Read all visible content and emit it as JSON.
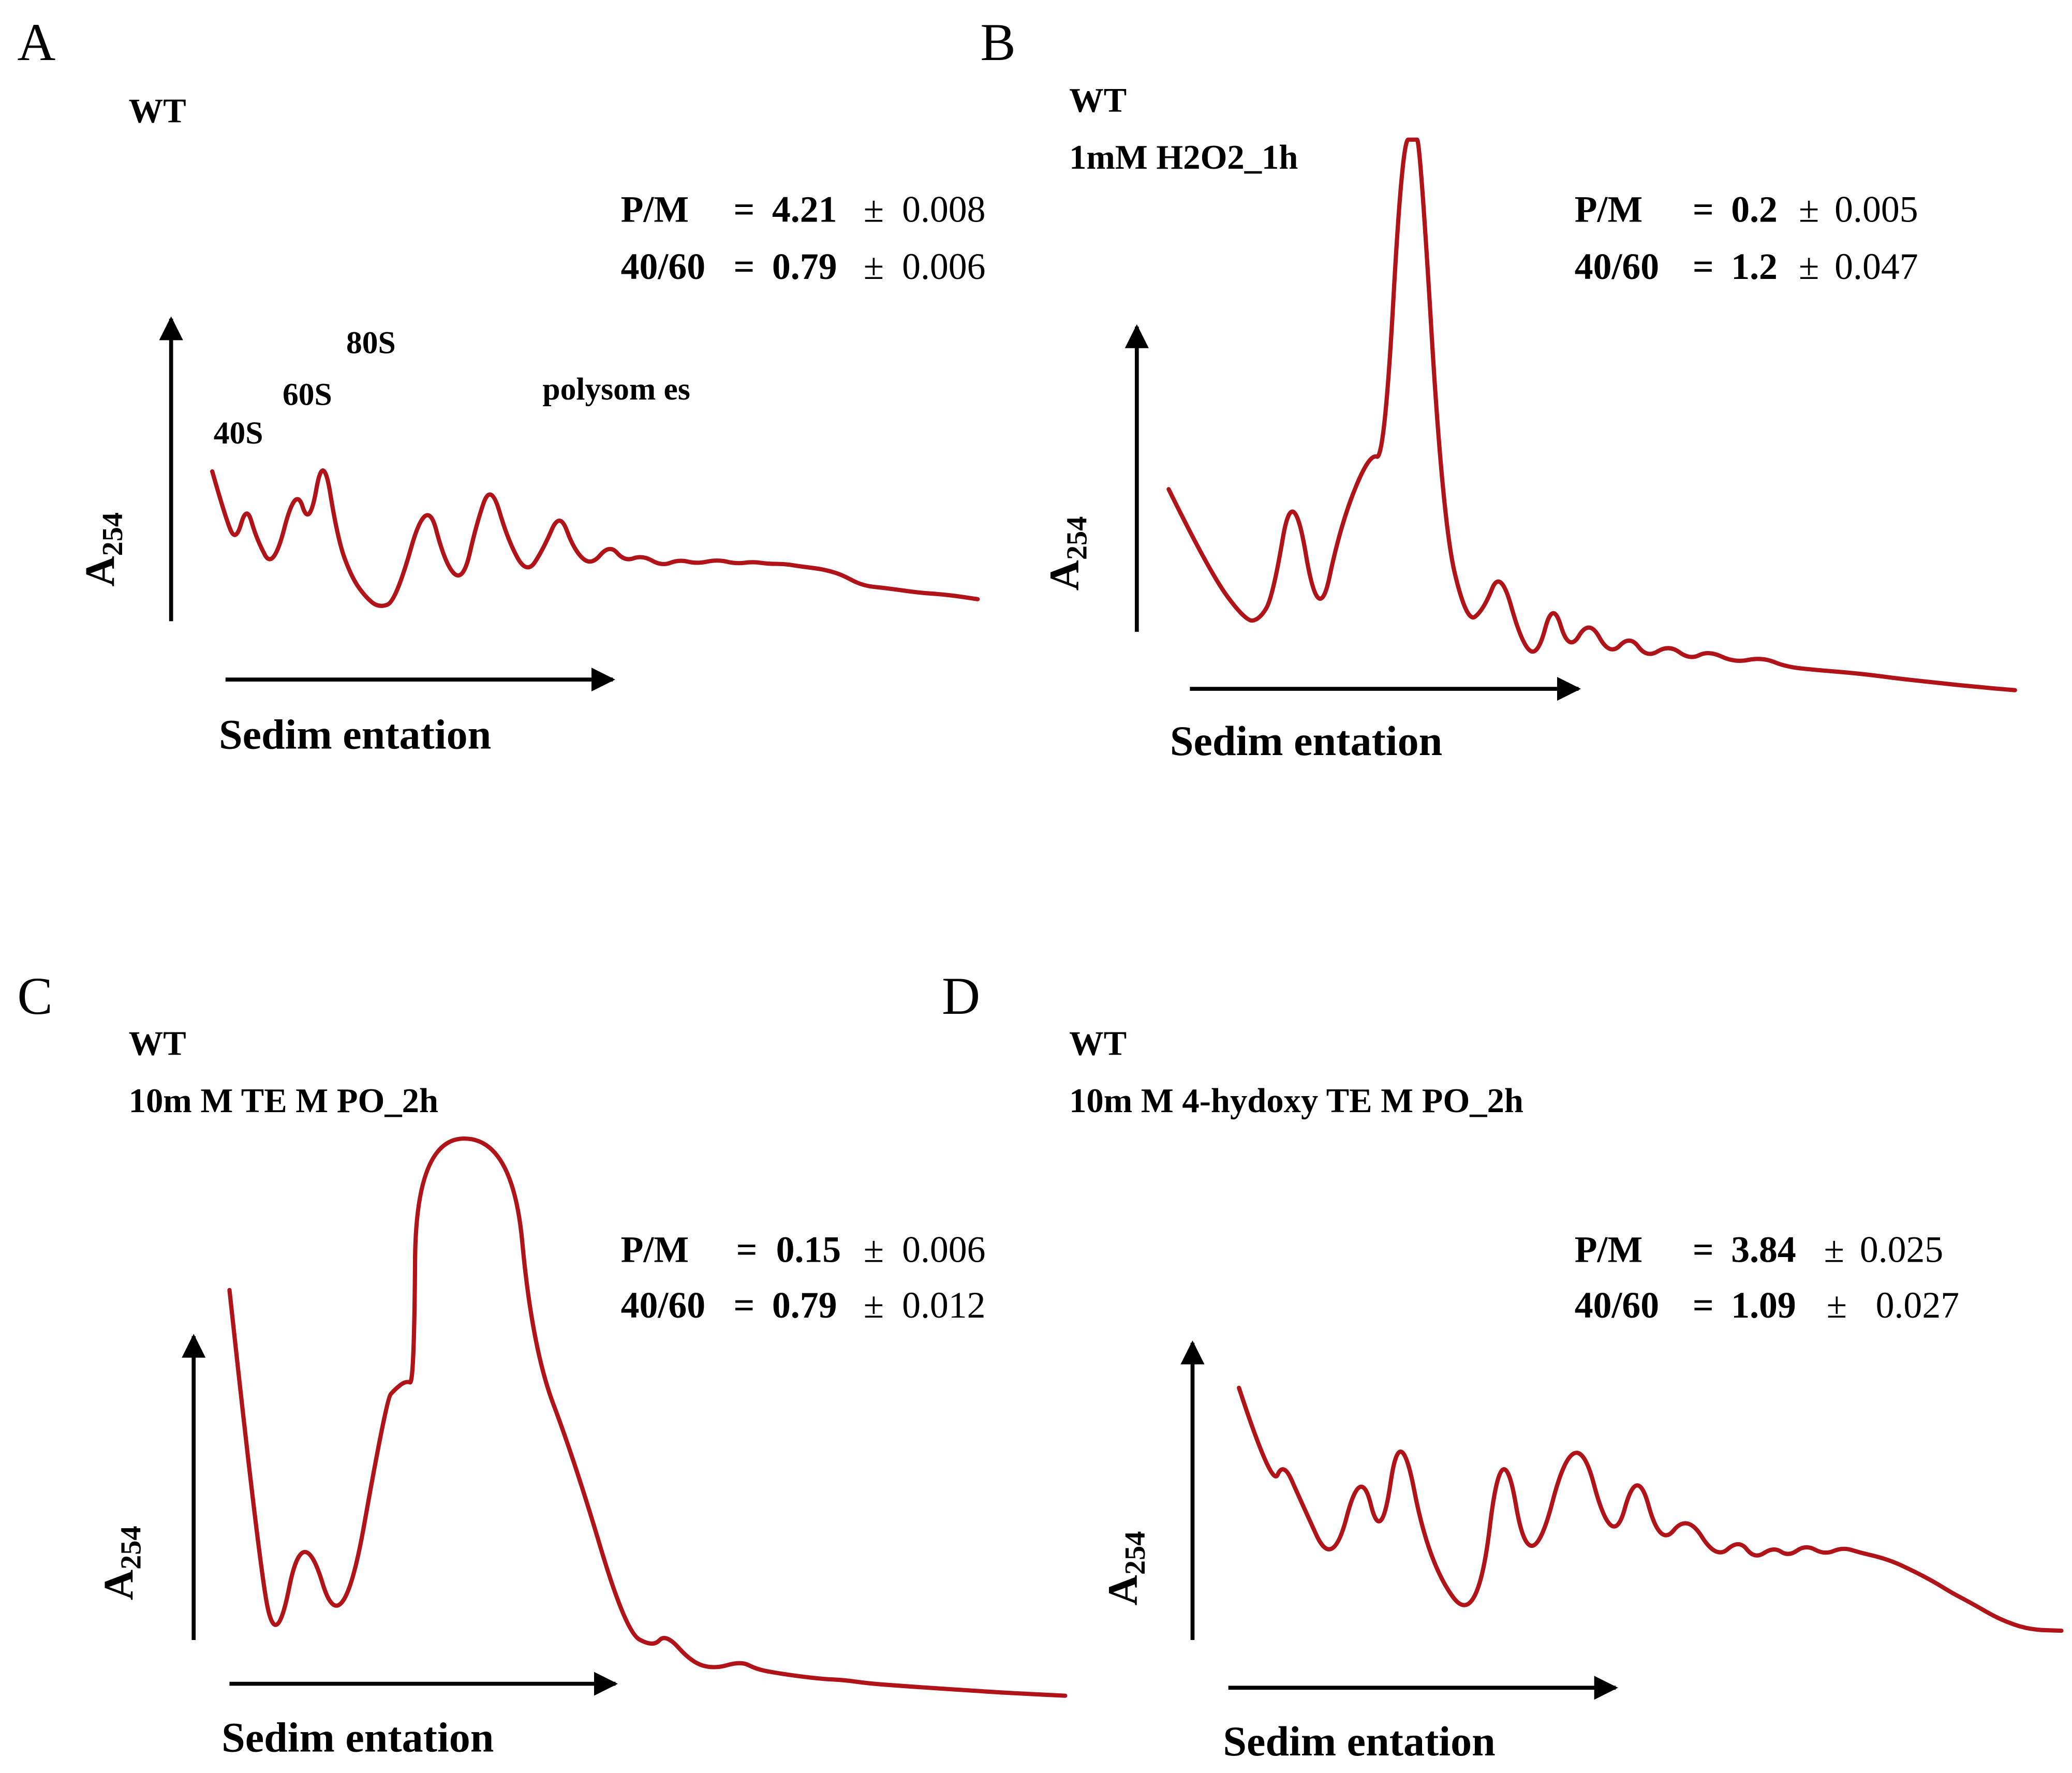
{
  "figure": {
    "trace_color": "#b01318",
    "axis_color": "#000000"
  },
  "chart_data": [
    {
      "panel": "A",
      "type": "line",
      "title": [
        "WT"
      ],
      "ylabel": "A",
      "ylabel_sub": "254",
      "xlabel": "Sedim entation",
      "stats": {
        "pm_label": "P/M",
        "pm_value": "4.21",
        "pm_error": "0.008",
        "ratio_label": "40/60",
        "ratio_value": "0.79",
        "ratio_error": "0.006"
      },
      "peak_labels": [
        "40S",
        "60S",
        "80S",
        "polysom es"
      ],
      "x": [
        0.0,
        0.018,
        0.031,
        0.045,
        0.058,
        0.08,
        0.109,
        0.127,
        0.145,
        0.164,
        0.182,
        0.2,
        0.218,
        0.24,
        0.28,
        0.305,
        0.328,
        0.345,
        0.364,
        0.386,
        0.411,
        0.433,
        0.454,
        0.473,
        0.495,
        0.519,
        0.539,
        0.562,
        0.587,
        0.61,
        0.633,
        0.66,
        0.684,
        0.706,
        0.727,
        0.747,
        0.766,
        0.788,
        0.804,
        0.823,
        0.85,
        0.881,
        0.92,
        0.96,
        1.0
      ],
      "values": [
        0.62,
        0.4,
        0.3,
        0.47,
        0.31,
        0.17,
        0.56,
        0.36,
        0.72,
        0.31,
        0.14,
        0.05,
        0.0,
        0.03,
        0.52,
        0.19,
        0.12,
        0.38,
        0.57,
        0.31,
        0.15,
        0.27,
        0.44,
        0.26,
        0.19,
        0.29,
        0.21,
        0.24,
        0.19,
        0.22,
        0.2,
        0.22,
        0.2,
        0.21,
        0.2,
        0.2,
        0.19,
        0.18,
        0.17,
        0.15,
        0.1,
        0.09,
        0.07,
        0.06,
        0.04
      ],
      "ylim": [
        0,
        1
      ]
    },
    {
      "panel": "B",
      "type": "line",
      "title": [
        "WT",
        "1mM H2O2_1h"
      ],
      "ylabel": "A",
      "ylabel_sub": "254",
      "xlabel": "Sedim entation",
      "stats": {
        "pm_label": "P/M",
        "pm_value": "0.2",
        "pm_error": "0.005",
        "ratio_label": "40/60",
        "ratio_value": "1.2",
        "ratio_error": "0.047"
      },
      "peak_labels": [],
      "clipped": true,
      "x": [
        0.0,
        0.048,
        0.091,
        0.107,
        0.123,
        0.147,
        0.177,
        0.203,
        0.237,
        0.255,
        0.276,
        0.29,
        0.297,
        0.324,
        0.352,
        0.372,
        0.392,
        0.417,
        0.436,
        0.454,
        0.473,
        0.497,
        0.521,
        0.545,
        0.565,
        0.591,
        0.616,
        0.638,
        0.669,
        0.701,
        0.73,
        0.77,
        0.818,
        0.862,
        0.91,
        0.955,
        1.0
      ],
      "values": [
        0.365,
        0.215,
        0.125,
        0.128,
        0.168,
        0.385,
        0.11,
        0.3,
        0.43,
        0.418,
        1.0,
        1.0,
        1.0,
        0.305,
        0.122,
        0.145,
        0.222,
        0.085,
        0.06,
        0.165,
        0.068,
        0.13,
        0.062,
        0.1,
        0.058,
        0.083,
        0.055,
        0.072,
        0.05,
        0.06,
        0.042,
        0.036,
        0.03,
        0.021,
        0.013,
        0.006,
        0.0
      ],
      "ylim": [
        0,
        1
      ]
    },
    {
      "panel": "C",
      "type": "line",
      "title": [
        "WT",
        "10m M  TE M PO_2h"
      ],
      "ylabel": "A",
      "ylabel_sub": "254",
      "xlabel": "Sedim entation",
      "stats": {
        "pm_label": "P/M",
        "pm_value": "0.15",
        "pm_error": "0.006",
        "ratio_label": "40/60",
        "ratio_value": "0.79",
        "ratio_error": "0.012"
      },
      "peak_labels": [],
      "clipped": true,
      "x": [
        0.0,
        0.032,
        0.055,
        0.088,
        0.135,
        0.188,
        0.198,
        0.211,
        0.221,
        0.223,
        0.339,
        0.362,
        0.413,
        0.474,
        0.507,
        0.522,
        0.553,
        0.58,
        0.612,
        0.63,
        0.65,
        0.68,
        0.71,
        0.736,
        0.765,
        0.8,
        0.84,
        0.88,
        0.92,
        0.96,
        1.0
      ],
      "values": [
        0.728,
        0.282,
        0.07,
        0.318,
        0.085,
        0.533,
        0.55,
        0.565,
        0.56,
        1.0,
        1.0,
        0.625,
        0.422,
        0.115,
        0.087,
        0.112,
        0.06,
        0.048,
        0.062,
        0.048,
        0.042,
        0.035,
        0.03,
        0.028,
        0.022,
        0.018,
        0.014,
        0.01,
        0.006,
        0.003,
        0.0
      ],
      "ylim": [
        0,
        1
      ]
    },
    {
      "panel": "D",
      "type": "line",
      "title": [
        "WT",
        "10m M  4-hydoxy TE M PO_2h"
      ],
      "ylabel": "A",
      "ylabel_sub": "254",
      "xlabel": "Sedim entation",
      "stats": {
        "pm_label": "P/M",
        "pm_value": "3.84",
        "pm_error": "0.025",
        "ratio_label": "40/60",
        "ratio_value": "1.09",
        "ratio_error": "0.027"
      },
      "peak_labels": [],
      "x": [
        0.0,
        0.04,
        0.054,
        0.074,
        0.114,
        0.148,
        0.173,
        0.196,
        0.23,
        0.29,
        0.32,
        0.354,
        0.409,
        0.454,
        0.484,
        0.512,
        0.545,
        0.58,
        0.608,
        0.627,
        0.65,
        0.668,
        0.689,
        0.712,
        0.734,
        0.755,
        0.777,
        0.799,
        0.821,
        0.845,
        0.866,
        0.893,
        0.925,
        0.96,
        1.0
      ],
      "values": [
        0.902,
        0.53,
        0.628,
        0.49,
        0.222,
        0.622,
        0.312,
        0.792,
        0.252,
        0.0,
        0.77,
        0.158,
        0.805,
        0.285,
        0.62,
        0.31,
        0.435,
        0.265,
        0.34,
        0.265,
        0.312,
        0.275,
        0.32,
        0.282,
        0.31,
        0.29,
        0.275,
        0.252,
        0.22,
        0.182,
        0.142,
        0.098,
        0.042,
        0.004,
        0.0
      ],
      "ylim": [
        0,
        1
      ]
    }
  ]
}
